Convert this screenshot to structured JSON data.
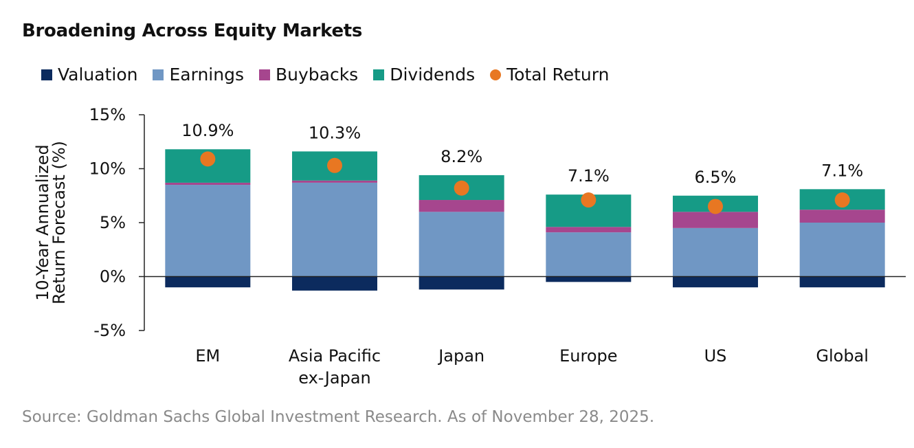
{
  "title": "Broadening Across Equity Markets",
  "source": "Source: Goldman Sachs Global Investment Research. As of November 28, 2025.",
  "colors": {
    "valuation": "#0c2b5e",
    "earnings": "#7097c4",
    "buybacks": "#a6468e",
    "dividends": "#169b86",
    "total_return": "#e87722",
    "axis": "#222222",
    "text": "#111111"
  },
  "chart_data": {
    "type": "bar",
    "stacked": true,
    "title": "Broadening Across Equity Markets",
    "ylabel": "10-Year Annualized Return Forecast (%)",
    "ylabel_lines": [
      "10-Year Annualized",
      "Return Forecast (%)"
    ],
    "ylim": [
      -5,
      15
    ],
    "yticks": [
      -5,
      0,
      5,
      10,
      15
    ],
    "ytick_labels": [
      "-5%",
      "0%",
      "5%",
      "10%",
      "15%"
    ],
    "categories": [
      "EM",
      "Asia Pacific ex-Japan",
      "Japan",
      "Europe",
      "US",
      "Global"
    ],
    "category_lines": [
      [
        "EM"
      ],
      [
        "Asia Pacific",
        "ex-Japan"
      ],
      [
        "Japan"
      ],
      [
        "Europe"
      ],
      [
        "US"
      ],
      [
        "Global"
      ]
    ],
    "series": [
      {
        "name": "Valuation",
        "color_key": "valuation",
        "values": [
          -1.0,
          -1.3,
          -1.2,
          -0.5,
          -1.0,
          -1.0
        ]
      },
      {
        "name": "Earnings",
        "color_key": "earnings",
        "values": [
          8.5,
          8.7,
          6.0,
          4.1,
          4.5,
          5.0
        ]
      },
      {
        "name": "Buybacks",
        "color_key": "buybacks",
        "values": [
          0.2,
          0.2,
          1.1,
          0.5,
          1.5,
          1.2
        ]
      },
      {
        "name": "Dividends",
        "color_key": "dividends",
        "values": [
          3.1,
          2.7,
          2.3,
          3.0,
          1.5,
          1.9
        ]
      }
    ],
    "total_return": {
      "name": "Total Return",
      "values": [
        10.9,
        10.3,
        8.2,
        7.1,
        6.5,
        7.1
      ],
      "labels": [
        "10.9%",
        "10.3%",
        "8.2%",
        "7.1%",
        "6.5%",
        "7.1%"
      ]
    },
    "legend_position": "top-left",
    "grid": false
  }
}
